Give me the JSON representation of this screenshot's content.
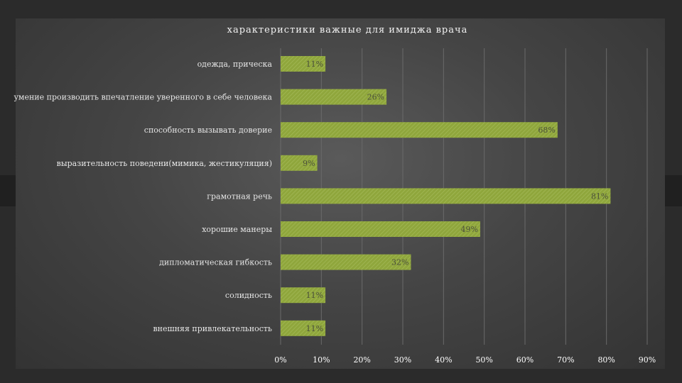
{
  "chart_data": {
    "type": "bar",
    "orientation": "horizontal",
    "title": "характеристики важные для имиджа врача",
    "categories": [
      "одежда, прическа",
      "умение производить впечатление уверенного в себе человека",
      "способность вызывать доверие",
      "выразительность поведени(мимика, жестикуляция)",
      "грамотная речь",
      "хорошие манеры",
      "дипломатическая гибкость",
      "солидность",
      "внешняя привлекательность"
    ],
    "values": [
      11,
      26,
      68,
      9,
      81,
      49,
      32,
      11,
      11
    ],
    "value_labels": [
      "11%",
      "26%",
      "68%",
      "9%",
      "81%",
      "49%",
      "32%",
      "11%",
      "11%"
    ],
    "xlim": [
      0,
      90
    ],
    "xticks": [
      0,
      10,
      20,
      30,
      40,
      50,
      60,
      70,
      80,
      90
    ],
    "xtick_labels": [
      "0%",
      "10%",
      "20%",
      "30%",
      "40%",
      "50%",
      "60%",
      "70%",
      "80%",
      "90%"
    ],
    "grid": true,
    "legend": "none",
    "bar_color": "#8fa63c",
    "background_color": "#3e3e3e"
  }
}
